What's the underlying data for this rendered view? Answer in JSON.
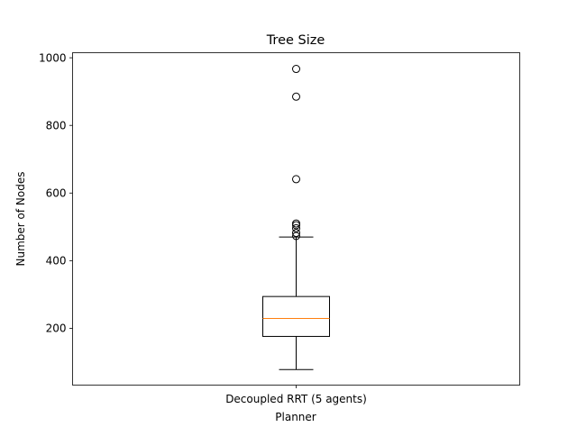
{
  "chart_data": {
    "type": "box",
    "title": "Tree Size",
    "xlabel": "Planner",
    "ylabel": "Number of Nodes",
    "categories": [
      "Decoupled RRT (5 agents)"
    ],
    "ylim": [
      32,
      1015
    ],
    "yticks": [
      200,
      400,
      600,
      800,
      1000
    ],
    "grid": false,
    "boxes": [
      {
        "name": "Decoupled RRT (5 agents)",
        "whisker_low": 78,
        "q1": 176,
        "median": 229,
        "q3": 294,
        "whisker_high": 470,
        "outliers": [
          473,
          482,
          496,
          505,
          510,
          641,
          885,
          967
        ]
      }
    ],
    "colors": {
      "box": "#000000",
      "median": "#ff7f0e",
      "outlier": "#000000"
    }
  }
}
